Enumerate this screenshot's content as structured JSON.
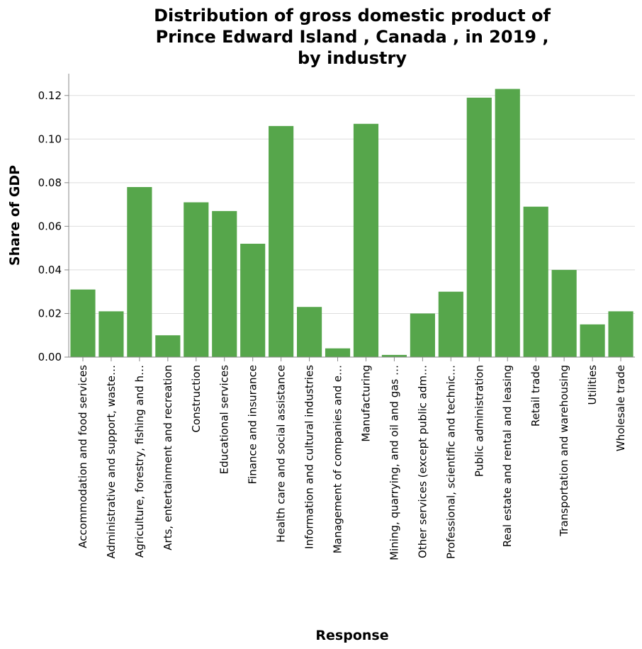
{
  "chart_data": {
    "type": "bar",
    "title": "Distribution of gross domestic product of Prince Edward Island , Canada , in 2019 , by industry",
    "title_lines": [
      "Distribution of gross domestic product of",
      "Prince Edward Island , Canada , in 2019 ,",
      "by industry"
    ],
    "xlabel": "Response",
    "ylabel": "Share of GDP",
    "ylim": [
      0,
      0.13
    ],
    "yticks": [
      "0.00",
      "0.02",
      "0.04",
      "0.06",
      "0.08",
      "0.10",
      "0.12"
    ],
    "grid": true,
    "bar_color": "#56a64b",
    "categories": [
      "Accommodation and food services",
      "Administrative and support, waste…",
      "Agriculture, forestry, fishing and h…",
      "Arts, entertainment and recreation",
      "Construction",
      "Educational services",
      "Finance and insurance",
      "Health care and social assistance",
      "Information and cultural industries",
      "Management of companies and e…",
      "Manufacturing",
      "Mining, quarrying, and oil and gas …",
      "Other services (except public adm…",
      "Professional, scientific and technic…",
      "Public administration",
      "Real estate and rental and leasing",
      "Retail trade",
      "Transportation and warehousing",
      "Utilities",
      "Wholesale trade"
    ],
    "values": [
      0.031,
      0.021,
      0.078,
      0.01,
      0.071,
      0.067,
      0.052,
      0.106,
      0.023,
      0.004,
      0.107,
      0.001,
      0.02,
      0.03,
      0.119,
      0.123,
      0.069,
      0.04,
      0.015,
      0.021
    ]
  }
}
